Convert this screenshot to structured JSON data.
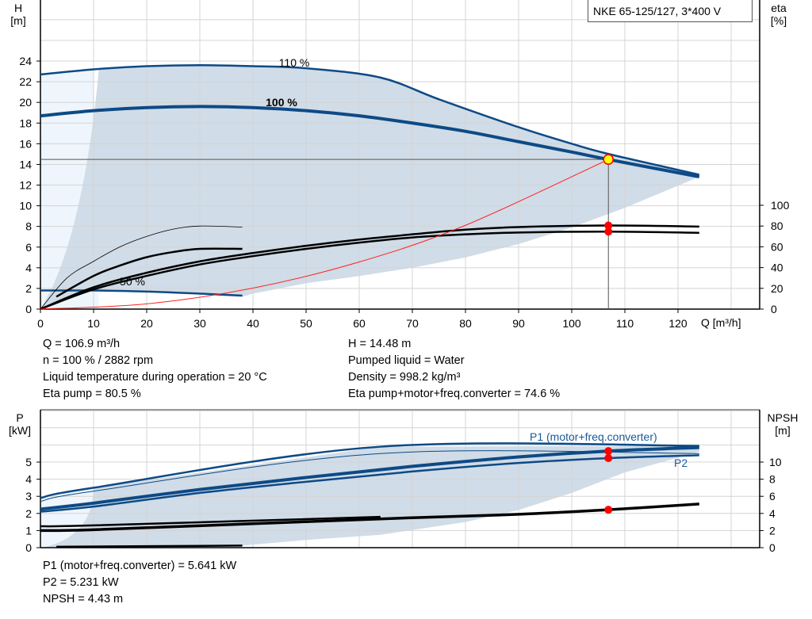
{
  "title": "NKE 65-125/127, 3*400 V",
  "colors": {
    "curve_blue": "#0d4a86",
    "area": "#d0dce7",
    "area_light": "#eef5fc",
    "system": "#ff2020",
    "marker": "#ff0000",
    "duty_fill": "#ffff00"
  },
  "chart_data": [
    {
      "type": "line",
      "name_axis_left": {
        "label": "H",
        "unit": "[m]",
        "ticks": [
          0,
          2,
          4,
          6,
          8,
          10,
          12,
          14,
          16,
          18,
          20,
          22,
          24
        ],
        "range": [
          0,
          30
        ]
      },
      "name_axis_right": {
        "label": "eta",
        "unit": "[%]",
        "ticks": [
          0,
          20,
          40,
          60,
          80,
          100
        ],
        "range": [
          0,
          100
        ]
      },
      "x_axis": {
        "label": "Q [m³/h]",
        "ticks": [
          0,
          10,
          20,
          30,
          40,
          50,
          60,
          70,
          80,
          90,
          100,
          110,
          120
        ],
        "range": [
          0,
          135
        ]
      },
      "grid": true,
      "curve_labels": [
        "110 %",
        "100 %",
        "50 %"
      ],
      "series": [
        {
          "id": "h110",
          "axis": "H",
          "points": [
            [
              0,
              22.7
            ],
            [
              10,
              23.2
            ],
            [
              20,
              23.5
            ],
            [
              30,
              23.6
            ],
            [
              40,
              23.5
            ],
            [
              50,
              23.3
            ],
            [
              64,
              22.4
            ],
            [
              75,
              20.3
            ],
            [
              90,
              17.6
            ],
            [
              100,
              16
            ],
            [
              107,
              15
            ],
            [
              124,
              13.0
            ]
          ]
        },
        {
          "id": "h100",
          "axis": "H",
          "points": [
            [
              0,
              18.7
            ],
            [
              10,
              19.2
            ],
            [
              20,
              19.5
            ],
            [
              30,
              19.6
            ],
            [
              40,
              19.5
            ],
            [
              50,
              19.2
            ],
            [
              60,
              18.7
            ],
            [
              70,
              18
            ],
            [
              80,
              17.2
            ],
            [
              90,
              16.2
            ],
            [
              100,
              15.2
            ],
            [
              106.9,
              14.48
            ],
            [
              124,
              12.8
            ]
          ]
        },
        {
          "id": "hmin",
          "axis": "H",
          "points": [
            [
              0,
              1.8
            ],
            [
              10,
              1.8
            ],
            [
              20,
              1.7
            ],
            [
              30,
              1.5
            ],
            [
              38,
              1.3
            ]
          ]
        },
        {
          "id": "eta_pump",
          "axis": "eta",
          "points": [
            [
              0,
              0
            ],
            [
              10,
              21
            ],
            [
              20,
              35
            ],
            [
              30,
              46
            ],
            [
              40,
              54
            ],
            [
              50,
              61
            ],
            [
              60,
              67
            ],
            [
              70,
              72
            ],
            [
              80,
              76.5
            ],
            [
              90,
              79
            ],
            [
              106.9,
              80.5
            ],
            [
              124,
              79.5
            ]
          ]
        },
        {
          "id": "eta_total",
          "axis": "eta",
          "points": [
            [
              0,
              0
            ],
            [
              10,
              19
            ],
            [
              20,
              32
            ],
            [
              30,
              43
            ],
            [
              40,
              51
            ],
            [
              50,
              58
            ],
            [
              60,
              64
            ],
            [
              70,
              69
            ],
            [
              80,
              72
            ],
            [
              90,
              73.8
            ],
            [
              106.9,
              74.6
            ],
            [
              124,
              73.5
            ]
          ]
        },
        {
          "id": "eta_min_thin",
          "axis": "eta",
          "points": [
            [
              0,
              0
            ],
            [
              5,
              30
            ],
            [
              10,
              46
            ],
            [
              15,
              60
            ],
            [
              20,
              70
            ],
            [
              25,
              77
            ],
            [
              30,
              80
            ],
            [
              38,
              79
            ]
          ]
        },
        {
          "id": "eta_min",
          "axis": "eta",
          "points": [
            [
              3,
              12
            ],
            [
              10,
              32
            ],
            [
              15,
              42
            ],
            [
              20,
              50
            ],
            [
              25,
              55
            ],
            [
              30,
              58
            ],
            [
              38,
              58
            ]
          ]
        },
        {
          "id": "system",
          "axis": "H",
          "points": [
            [
              0,
              0
            ],
            [
              20,
              0.51
            ],
            [
              40,
              2.03
            ],
            [
              60,
              4.56
            ],
            [
              80,
              8.11
            ],
            [
              106.9,
              14.48
            ]
          ]
        }
      ],
      "duty_point": {
        "Q": 106.9,
        "H": 14.48,
        "eta_pump": 80.5,
        "eta_total": 74.6
      }
    },
    {
      "type": "line",
      "name_axis_left": {
        "label": "P",
        "unit": "[kW]",
        "ticks": [
          0,
          1,
          2,
          3,
          4,
          5
        ],
        "range": [
          0,
          8
        ]
      },
      "name_axis_right": {
        "label": "NPSH",
        "unit": "[m]",
        "ticks": [
          0,
          2,
          4,
          6,
          8,
          10
        ],
        "range": [
          0,
          16
        ]
      },
      "grid": true,
      "curve_labels": [
        "P1 (motor+freq.converter)",
        "P2"
      ],
      "series": [
        {
          "id": "p1_110",
          "axis": "P",
          "points": [
            [
              0,
              2.9
            ],
            [
              10,
              3.5
            ],
            [
              64,
              5.9
            ],
            [
              124,
              5.95
            ]
          ]
        },
        {
          "id": "p2_110",
          "axis": "P",
          "points": [
            [
              0,
              2.7
            ],
            [
              10,
              3.3
            ],
            [
              64,
              5.5
            ],
            [
              124,
              5.5
            ]
          ]
        },
        {
          "id": "p1",
          "axis": "P",
          "points": [
            [
              0,
              2.25
            ],
            [
              10,
              2.6
            ],
            [
              30,
              3.4
            ],
            [
              50,
              4.1
            ],
            [
              70,
              4.75
            ],
            [
              90,
              5.3
            ],
            [
              106.9,
              5.641
            ],
            [
              124,
              5.85
            ]
          ]
        },
        {
          "id": "p2",
          "axis": "P",
          "points": [
            [
              0,
              2.1
            ],
            [
              10,
              2.4
            ],
            [
              30,
              3.2
            ],
            [
              50,
              3.85
            ],
            [
              70,
              4.45
            ],
            [
              90,
              4.95
            ],
            [
              106.9,
              5.231
            ],
            [
              124,
              5.4
            ]
          ]
        },
        {
          "id": "p_min",
          "axis": "P",
          "points": [
            [
              3,
              0.05
            ],
            [
              38,
              0.12
            ]
          ]
        },
        {
          "id": "npsh_110",
          "axis": "NPSH",
          "points": [
            [
              0,
              2.5
            ],
            [
              10,
              2.6
            ],
            [
              64,
              3.6
            ]
          ]
        },
        {
          "id": "npsh",
          "axis": "NPSH",
          "points": [
            [
              0,
              2.0
            ],
            [
              10,
              2.1
            ],
            [
              40,
              2.8
            ],
            [
              70,
              3.5
            ],
            [
              90,
              3.9
            ],
            [
              106.9,
              4.43
            ],
            [
              124,
              5.1
            ]
          ]
        }
      ],
      "duty_point": {
        "Q": 106.9,
        "P1": 5.641,
        "P2": 5.231,
        "NPSH": 4.43
      }
    }
  ],
  "info_top_left": [
    "Q = 106.9 m³/h",
    "n = 100 % / 2882 rpm",
    "Liquid temperature during operation = 20 °C",
    "Eta pump = 80.5 %"
  ],
  "info_top_right": [
    "H = 14.48 m",
    "Pumped liquid = Water",
    "Density = 998.2 kg/m³",
    "Eta pump+motor+freq.converter = 74.6 %"
  ],
  "info_bottom": [
    "P1 (motor+freq.converter) = 5.641 kW",
    "P2 = 5.231 kW",
    "NPSH = 4.43 m"
  ]
}
